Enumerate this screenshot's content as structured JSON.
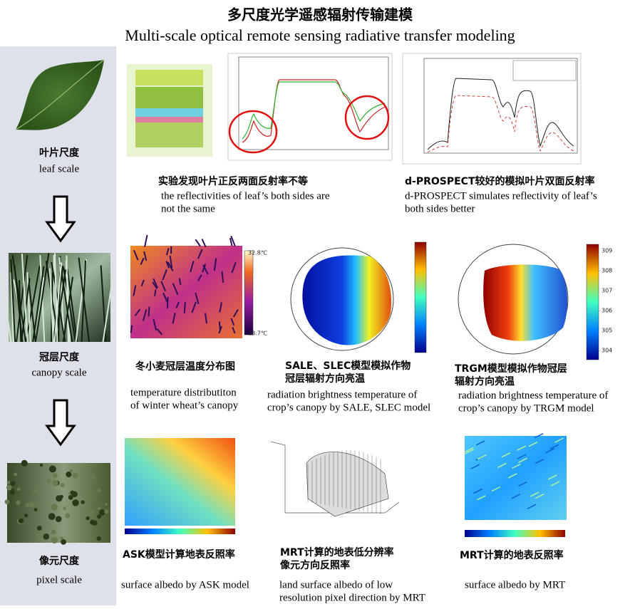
{
  "header": {
    "title": "多尺度光学遥感辐射传输建模",
    "subtitle": "Multi-scale optical remote sensing radiative transfer modeling"
  },
  "scales": [
    {
      "zh": "叶片尺度",
      "en": "leaf scale"
    },
    {
      "zh": "冠层尺度",
      "en": "canopy scale"
    },
    {
      "zh": "像元尺度",
      "en": "pixel scale"
    }
  ],
  "panels": [
    {
      "zh": [
        "实验发现叶片正反两面反射率不等"
      ],
      "en": [
        "the reflectivities of leaf’s both sides are",
        "not the same"
      ]
    },
    {
      "zh": [
        "d-PROSPECT较好的模拟叶片双面反射率"
      ],
      "en": [
        "d-PROSPECT simulates reflectivity of leaf’s",
        " both sides better"
      ]
    },
    {
      "zh": [
        "冬小麦冠层温度分布图"
      ],
      "en": [
        "temperature distributiton",
        "of winter wheat’s canopy"
      ],
      "colorbar": [
        "32.8℃",
        "13.7℃"
      ]
    },
    {
      "zh": [
        "SALE、SLEC模型模拟作物",
        "冠层辐射方向亮温"
      ],
      "en": [
        "radiation brightness temperature of",
        "crop’s canopy by SALE, SLEC model"
      ]
    },
    {
      "zh": [
        "TRGM模型模拟作物冠层",
        "辐射方向亮温"
      ],
      "en": [
        "radiation brightness temperature of",
        "crop’s canopy by TRGM model"
      ],
      "colorbar": [
        "309",
        "308",
        "307",
        "306",
        "305",
        "304"
      ]
    },
    {
      "zh": [
        "ASK模型计算地表反照率"
      ],
      "en": [
        "surface albedo by ASK model"
      ]
    },
    {
      "zh": [
        "MRT计算的地表低分辨率",
        "像元方向反照率"
      ],
      "en": [
        "land surface albedo of low",
        "resolution pixel direction by MRT"
      ]
    },
    {
      "zh": [
        "MRT计算的地表反照率"
      ],
      "en": [
        "surface albedo by MRT"
      ]
    }
  ]
}
